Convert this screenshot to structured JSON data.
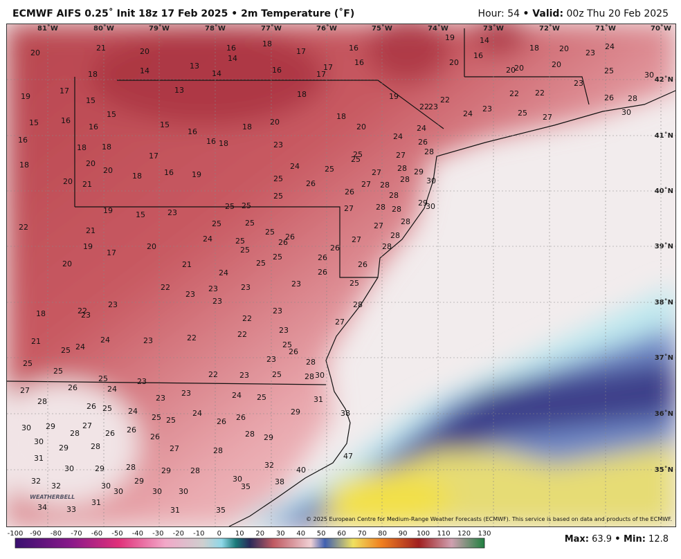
{
  "header": {
    "title": "ECMWF AIFS 0.25˚ Init 18z 17 Feb 2025 • 2m Temperature (˚F)",
    "status": [
      {
        "label": "Hour:",
        "value": "54"
      },
      {
        "label": "• Valid:",
        "value": "00z Thu 20 Feb 2025"
      }
    ]
  },
  "map": {
    "longitudes": [
      "81˚W",
      "80˚W",
      "79˚W",
      "78˚W",
      "77˚W",
      "76˚W",
      "75˚W",
      "74˚W",
      "73˚W",
      "72˚W",
      "71˚W",
      "70˚W"
    ],
    "latitudes": [
      "42˚N",
      "41˚N",
      "40˚N",
      "39˚N",
      "38˚N",
      "37˚N",
      "36˚N",
      "35˚N"
    ],
    "temperatures": [
      20,
      21,
      20,
      18,
      14,
      13,
      14,
      16,
      14,
      18,
      16,
      17,
      17,
      17,
      16,
      16,
      19,
      20,
      19,
      14,
      16,
      18,
      20,
      23,
      24,
      25,
      20,
      20,
      20,
      19,
      17,
      15,
      13,
      15,
      15,
      16,
      16,
      15,
      16,
      16,
      18,
      18,
      20,
      18,
      18,
      20,
      22,
      23,
      22,
      24,
      23,
      22,
      22,
      25,
      27,
      23,
      26,
      28,
      30,
      30,
      16,
      18,
      18,
      17,
      18,
      20,
      20,
      18,
      16,
      19,
      23,
      24,
      25,
      25,
      26,
      25,
      25,
      24,
      24,
      26,
      28,
      27,
      27,
      28,
      29,
      30,
      28,
      28,
      27,
      26,
      28,
      20,
      21,
      25,
      19,
      15,
      23,
      25,
      25,
      27,
      28,
      28,
      29,
      30,
      28,
      27,
      28,
      28,
      27,
      26,
      26,
      26,
      26,
      25,
      28,
      22,
      21,
      25,
      25,
      25,
      24,
      25,
      25,
      26,
      26,
      19,
      17,
      20,
      20,
      21,
      25,
      25,
      24,
      23,
      22,
      23,
      23,
      23,
      23,
      23,
      18,
      23,
      22,
      23,
      22,
      22,
      23,
      27,
      21,
      25,
      24,
      24,
      23,
      22,
      25,
      26,
      23,
      28,
      25,
      25,
      25,
      23,
      22,
      23,
      25,
      28,
      30,
      27,
      26,
      24,
      23,
      24,
      25,
      23,
      28,
      26,
      25,
      24,
      24,
      25,
      25,
      26,
      26,
      29,
      31,
      38,
      30,
      29,
      27,
      28,
      26,
      26,
      26,
      28,
      29,
      30,
      29,
      28,
      27,
      28,
      47,
      31,
      30,
      29,
      28,
      29,
      28,
      32,
      40,
      32,
      32,
      30,
      30,
      29,
      30,
      30,
      30,
      35,
      38,
      34,
      33,
      31,
      31,
      35
    ],
    "copyright": "© 2025 European Centre for Medium-Range Weather Forecasts (ECMWF). This service is based on data and products of the ECMWF.",
    "logo": "WEATHERBELL"
  },
  "colorbar": {
    "ticks": [
      -100,
      -90,
      -80,
      -70,
      -60,
      -50,
      -40,
      -30,
      -20,
      -10,
      0,
      10,
      20,
      30,
      40,
      50,
      60,
      70,
      80,
      90,
      100,
      110,
      120,
      130
    ]
  },
  "footer": {
    "max_label": "Max:",
    "max": 63.9,
    "min_label": "• Min:",
    "min": 12.8
  }
}
